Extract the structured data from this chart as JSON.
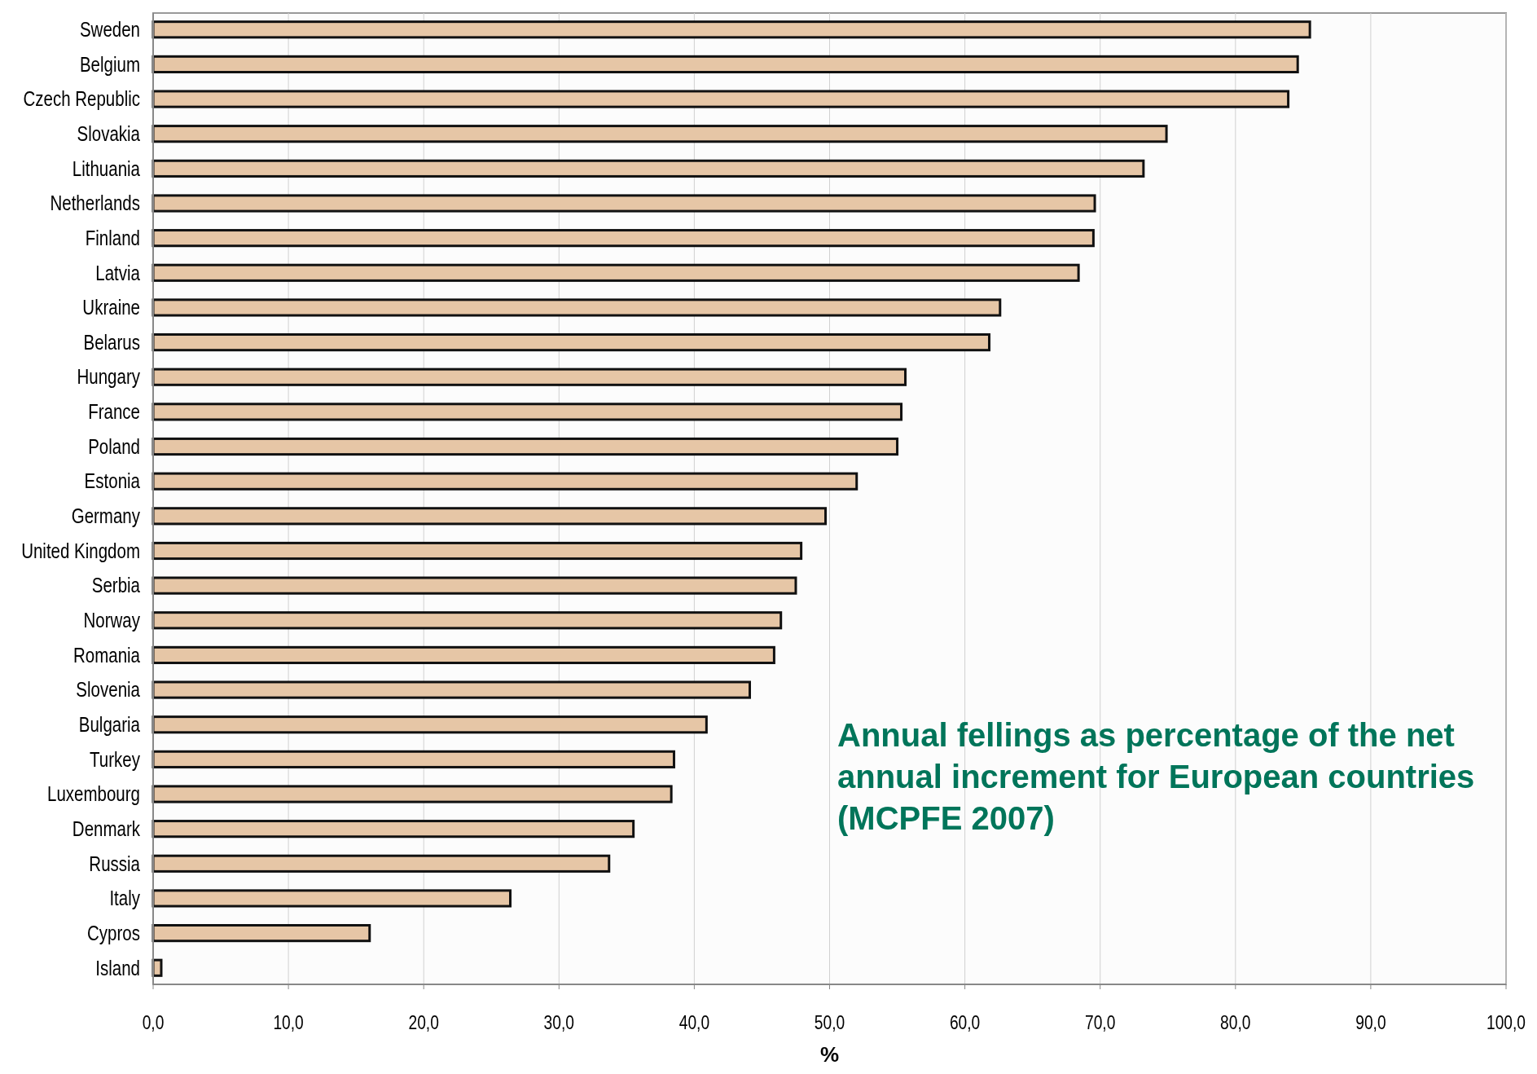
{
  "chart_data": {
    "type": "bar",
    "orientation": "horizontal",
    "title": "Annual fellings as percentage of the net annual increment for European countries (MCPFE 2007)",
    "xlabel": "%",
    "categories": [
      "Sweden",
      "Belgium",
      "Czech Republic",
      "Slovakia",
      "Lithuania",
      "Netherlands",
      "Finland",
      "Latvia",
      "Ukraine",
      "Belarus",
      "Hungary",
      "France",
      "Poland",
      "Estonia",
      "Germany",
      "United Kingdom",
      "Serbia",
      "Norway",
      "Romania",
      "Slovenia",
      "Bulgaria",
      "Turkey",
      "Luxembourg",
      "Denmark",
      "Russia",
      "Italy",
      "Cypros",
      "Island"
    ],
    "values": [
      85.5,
      84.6,
      83.9,
      74.9,
      73.2,
      69.6,
      69.5,
      68.4,
      62.6,
      61.8,
      55.6,
      55.3,
      55.0,
      52.0,
      49.7,
      47.9,
      47.5,
      46.4,
      45.9,
      44.1,
      40.9,
      38.5,
      38.3,
      35.5,
      33.7,
      26.4,
      16.0,
      0.6
    ],
    "color": "#e6c6a6",
    "xlim": [
      0,
      100
    ],
    "xticks": [
      {
        "value": 0,
        "label": "0,0"
      },
      {
        "value": 10,
        "label": "10,0"
      },
      {
        "value": 20,
        "label": "20,0"
      },
      {
        "value": 30,
        "label": "30,0"
      },
      {
        "value": 40,
        "label": "40,0"
      },
      {
        "value": 50,
        "label": "50,0"
      },
      {
        "value": 60,
        "label": "60,0"
      },
      {
        "value": 70,
        "label": "70,0"
      },
      {
        "value": 80,
        "label": "80,0"
      },
      {
        "value": 90,
        "label": "90,0"
      },
      {
        "value": 100,
        "label": "100,0"
      }
    ],
    "grid": "x"
  }
}
